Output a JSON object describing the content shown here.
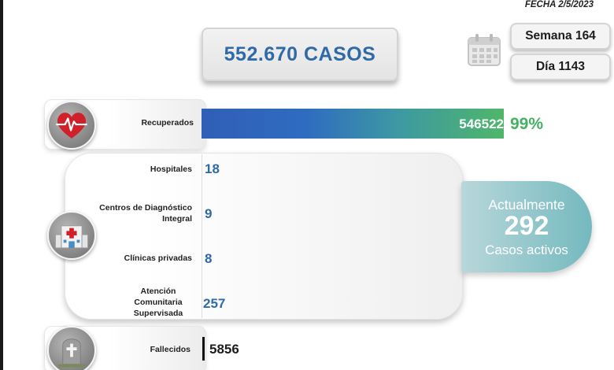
{
  "header": {
    "date": "FECHA 2/5/2023"
  },
  "summary": {
    "total_cases": "552.670 CASOS",
    "week": "Semana 164",
    "day": "Día 1143"
  },
  "recovered": {
    "label": "Recuperados",
    "value": "546522",
    "percent": "99%",
    "fraction": 0.99
  },
  "facilities": {
    "items": [
      {
        "label": "Hospitales",
        "value": "18"
      },
      {
        "label": "Centros de Diagnóstico Integral",
        "value": "9"
      },
      {
        "label": "Clínicas privadas",
        "value": "8"
      },
      {
        "label": "Atención Comunitaria Supervisada",
        "value": "257"
      }
    ]
  },
  "active": {
    "top": "Actualmente",
    "count": "292",
    "bottom": "Casos activos"
  },
  "deceased": {
    "label": "Fallecidos",
    "value": "5856"
  },
  "colors": {
    "accent_blue": "#2f6aa8",
    "recovered_green": "#44b062",
    "active_teal": "#74b9bf"
  },
  "icons": [
    "heart-pulse-icon",
    "hospital-icon",
    "tombstone-icon",
    "calendar-icon"
  ]
}
